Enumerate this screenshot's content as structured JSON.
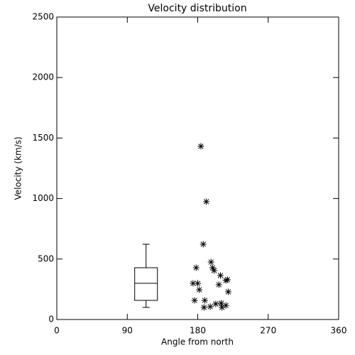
{
  "chart_data": {
    "type": "scatter",
    "title": "Velocity distribution",
    "x_label": "Angle from north",
    "y_label": "Velocity (km/s)",
    "xlim": [
      0,
      360
    ],
    "xticks": [
      0,
      90,
      180,
      270,
      360
    ],
    "ylim": [
      0,
      2500
    ],
    "yticks": [
      0,
      500,
      1000,
      1500,
      2000,
      2500
    ],
    "color": "#000000",
    "x": [
      184,
      191,
      187,
      178,
      174,
      180,
      182,
      176,
      189,
      188,
      197,
      199,
      201,
      209,
      216,
      218,
      207,
      219,
      203,
      196,
      210,
      216,
      211
    ],
    "y": [
      1432,
      974,
      622,
      428,
      299,
      299,
      246,
      158,
      158,
      100,
      475,
      428,
      405,
      364,
      323,
      329,
      288,
      229,
      129,
      106,
      135,
      117,
      100
    ],
    "box": {
      "x": 114,
      "whisker_low": 100,
      "q1": 158,
      "median": 299,
      "q3": 428,
      "whisker_high": 622
    }
  }
}
